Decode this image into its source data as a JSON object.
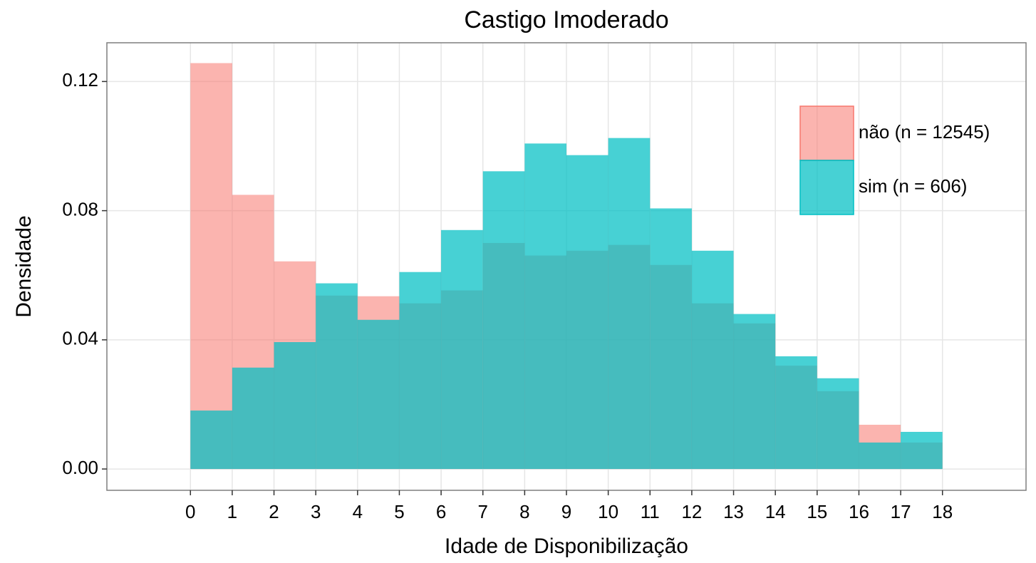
{
  "chart_data": {
    "type": "histogram",
    "title": "Castigo Imoderado",
    "x_label": "Idade de Disponibilização",
    "y_label": "Densidade",
    "bins": [
      0,
      1,
      2,
      3,
      4,
      5,
      6,
      7,
      8,
      9,
      10,
      11,
      12,
      13,
      14,
      15,
      16,
      17,
      18
    ],
    "series": [
      {
        "name": "não (n = 12545)",
        "color": "#F8766D",
        "values": [
          0.1257,
          0.0849,
          0.0643,
          0.0537,
          0.0535,
          0.0513,
          0.0553,
          0.07,
          0.0661,
          0.0676,
          0.0694,
          0.0632,
          0.0513,
          0.0451,
          0.032,
          0.0241,
          0.0137,
          0.0082
        ]
      },
      {
        "name": "sim (n = 606)",
        "color": "#00BFC4",
        "values": [
          0.0181,
          0.0314,
          0.0393,
          0.0575,
          0.0462,
          0.061,
          0.074,
          0.0922,
          0.1008,
          0.0972,
          0.1025,
          0.0807,
          0.0676,
          0.048,
          0.0349,
          0.0281,
          0.0082,
          0.0115
        ]
      }
    ],
    "xlim": [
      -2,
      20
    ],
    "xticks": [
      0,
      1,
      2,
      3,
      4,
      5,
      6,
      7,
      8,
      9,
      10,
      11,
      12,
      13,
      14,
      15,
      16,
      17,
      18
    ],
    "ylim": [
      -0.0066,
      0.132
    ],
    "yticks": [
      {
        "value": 0,
        "label": "0.00"
      },
      {
        "value": 0.04,
        "label": "0.04"
      },
      {
        "value": 0.08,
        "label": "0.08"
      },
      {
        "value": 0.12,
        "label": "0.12"
      }
    ],
    "grid": true,
    "legend": "top-right"
  }
}
